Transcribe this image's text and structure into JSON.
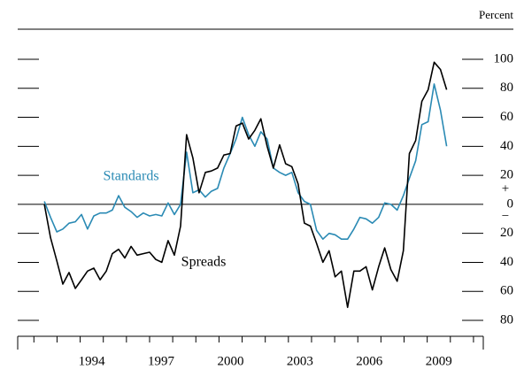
{
  "chart_data": {
    "type": "line",
    "y_axis_label": "Percent",
    "zero_signs": [
      "+",
      "−"
    ],
    "x": [
      1992.45,
      1992.72,
      1992.99,
      1993.25,
      1993.52,
      1993.79,
      1994.06,
      1994.32,
      1994.59,
      1994.86,
      1995.13,
      1995.39,
      1995.66,
      1995.93,
      1996.2,
      1996.46,
      1996.73,
      1997.0,
      1997.27,
      1997.53,
      1997.8,
      1998.07,
      1998.34,
      1998.6,
      1998.87,
      1999.14,
      1999.41,
      1999.67,
      1999.94,
      2000.21,
      2000.48,
      2000.74,
      2001.01,
      2001.28,
      2001.55,
      2001.81,
      2002.08,
      2002.35,
      2002.62,
      2002.88,
      2003.15,
      2003.42,
      2003.69,
      2003.95,
      2004.22,
      2004.49,
      2004.76,
      2005.02,
      2005.29,
      2005.56,
      2005.83,
      2006.09,
      2006.36,
      2006.63,
      2006.9,
      2007.16,
      2007.43,
      2007.7,
      2007.97,
      2008.23,
      2008.5,
      2008.77,
      2009.04,
      2009.3,
      2009.57,
      2009.84
    ],
    "series": [
      {
        "name": "Standards",
        "color": "#2a8ab4",
        "values": [
          2,
          -9,
          -19,
          -17,
          -13,
          -12,
          -7,
          -17,
          -8,
          -6,
          -6,
          -4,
          6,
          -2,
          -5,
          -9,
          -6,
          -8,
          -7,
          -8,
          1,
          -7,
          0,
          36,
          8,
          10,
          5,
          9,
          11,
          25,
          35,
          45,
          60,
          48,
          40,
          50,
          45,
          25,
          22,
          20,
          22,
          8,
          2,
          0,
          -18,
          -24,
          -20,
          -21,
          -24,
          -24,
          -17,
          -9,
          -10,
          -13,
          -9,
          1,
          0,
          -4,
          6,
          18,
          30,
          55,
          57,
          83,
          65,
          40
        ]
      },
      {
        "name": "Spreads",
        "color": "#000000",
        "values": [
          0,
          -23,
          -39,
          -55,
          -47,
          -58,
          -52,
          -46,
          -44,
          -52,
          -46,
          -34,
          -31,
          -37,
          -29,
          -35,
          -34,
          -33,
          -38,
          -40,
          -25,
          -35,
          -15,
          48,
          32,
          8,
          22,
          23,
          25,
          34,
          35,
          54,
          56,
          45,
          51,
          59,
          40,
          25,
          41,
          28,
          26,
          14,
          -13,
          -15,
          -27,
          -40,
          -32,
          -50,
          -46,
          -71,
          -46,
          -46,
          -43,
          -59,
          -43,
          -30,
          -45,
          -53,
          -32,
          35,
          44,
          71,
          79,
          98,
          93,
          79
        ]
      }
    ],
    "xlim": [
      1991.3,
      2011.5
    ],
    "xticks": [
      {
        "value": 1994.5,
        "label": "1994"
      },
      {
        "value": 1997.5,
        "label": "1997"
      },
      {
        "value": 2000.5,
        "label": "2000"
      },
      {
        "value": 2003.5,
        "label": "2003"
      },
      {
        "value": 2006.5,
        "label": "2006"
      },
      {
        "value": 2009.5,
        "label": "2009"
      }
    ],
    "xtick_marks": [
      1992,
      1993,
      1994,
      1995,
      1996,
      1997,
      1998,
      1999,
      2000,
      2001,
      2002,
      2003,
      2004,
      2005,
      2006,
      2007,
      2008,
      2009,
      2010,
      2011
    ],
    "ylim": [
      -90,
      110
    ],
    "yticks": [
      100,
      80,
      60,
      40,
      20,
      0,
      {
        "value": -20,
        "label": "20"
      },
      {
        "value": -40,
        "label": "40"
      },
      {
        "value": -60,
        "label": "60"
      },
      {
        "value": -80,
        "label": "80"
      }
    ]
  }
}
